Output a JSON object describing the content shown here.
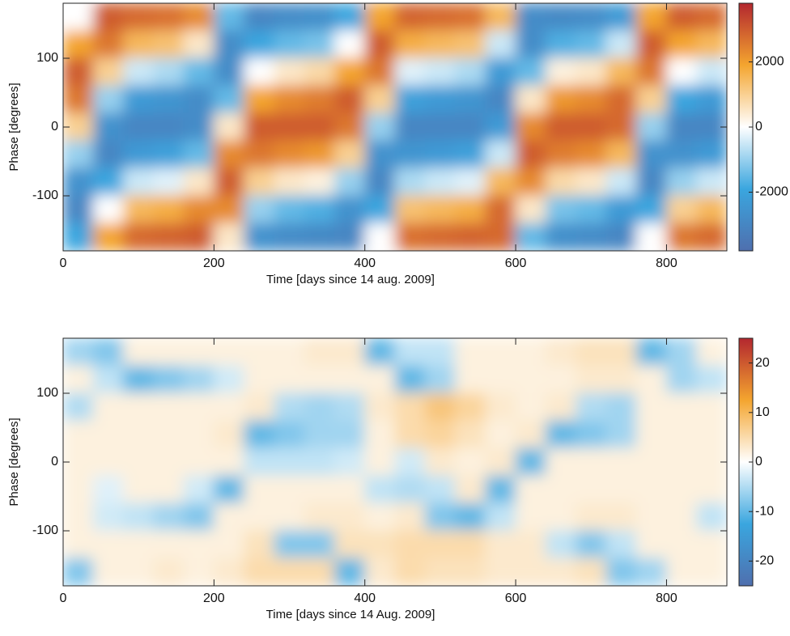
{
  "chart_data": [
    {
      "type": "heatmap",
      "x_label": "Time [days since 14 aug. 2009]",
      "y_label": "Phase [degrees]",
      "xlim": [
        0,
        880
      ],
      "ylim": [
        -180,
        180
      ],
      "xticks": [
        0,
        200,
        400,
        600,
        800
      ],
      "yticks": [
        -100,
        0,
        100
      ],
      "clim": [
        -3800,
        3800
      ],
      "cticks": [
        -2000,
        0,
        2000
      ],
      "colorscale": [
        "#4f6fae",
        "#3aa6df",
        "#ffffff",
        "#f4a52f",
        "#b3272f"
      ],
      "x": [
        20,
        60,
        100,
        140,
        180,
        220,
        260,
        300,
        340,
        380,
        420,
        460,
        500,
        540,
        580,
        620,
        660,
        700,
        740,
        780,
        820,
        860
      ],
      "y": [
        160,
        120,
        80,
        40,
        0,
        -40,
        -80,
        -120,
        -160
      ],
      "z": [
        [
          0,
          1900,
          3000,
          2600,
          1000,
          -1000,
          -2600,
          -3000,
          -1900
        ],
        [
          3000,
          2600,
          1000,
          -1000,
          -2600,
          -3000,
          -1900,
          0,
          1900
        ],
        [
          2800,
          1500,
          -500,
          -2300,
          -3000,
          -2300,
          -500,
          1500,
          2800
        ],
        [
          2700,
          1300,
          -800,
          -2500,
          -3000,
          -2100,
          -300,
          1700,
          2900
        ],
        [
          2300,
          500,
          -1500,
          -2800,
          -2800,
          -1500,
          500,
          2300,
          3000
        ],
        [
          -1500,
          -2800,
          -2800,
          -1500,
          500,
          2300,
          3000,
          2300,
          500
        ],
        [
          -3000,
          -1900,
          0,
          1900,
          3000,
          2600,
          1000,
          -1000,
          -2600
        ],
        [
          -2800,
          -1500,
          500,
          2300,
          3000,
          2300,
          500,
          -1500,
          -2800
        ],
        [
          -2700,
          -1300,
          800,
          2500,
          3000,
          2100,
          300,
          -1700,
          -2900
        ],
        [
          -1900,
          0,
          1900,
          3000,
          2600,
          1000,
          -1000,
          -2600,
          -3000
        ],
        [
          1900,
          3000,
          2600,
          1000,
          -1000,
          -2600,
          -3000,
          -1900,
          0
        ],
        [
          2900,
          1700,
          -300,
          -2100,
          -3000,
          -2500,
          -800,
          1300,
          2700
        ],
        [
          2800,
          1500,
          -500,
          -2300,
          -3000,
          -2300,
          -500,
          1500,
          2800
        ],
        [
          2700,
          1300,
          -800,
          -2500,
          -3000,
          -2100,
          -300,
          1700,
          2900
        ],
        [
          1500,
          -500,
          -2300,
          -3000,
          -2300,
          -500,
          1500,
          2800,
          2800
        ],
        [
          -2800,
          -2800,
          -1500,
          500,
          2300,
          3000,
          2300,
          500,
          -1500
        ],
        [
          -2900,
          -1700,
          300,
          2100,
          3000,
          2500,
          800,
          -1300,
          -2700
        ],
        [
          -2800,
          -1500,
          500,
          2300,
          3000,
          2300,
          500,
          -1500,
          -2800
        ],
        [
          -2300,
          -500,
          1500,
          2800,
          2800,
          1500,
          -500,
          -2300,
          -3000
        ],
        [
          1900,
          3000,
          2600,
          1000,
          -1000,
          -2600,
          -3000,
          -1900,
          0
        ],
        [
          3000,
          1900,
          0,
          -1900,
          -3000,
          -2600,
          -1000,
          1000,
          2600
        ],
        [
          2800,
          1500,
          -500,
          -2300,
          -3000,
          -2300,
          -500,
          1500,
          2800
        ]
      ]
    },
    {
      "type": "heatmap",
      "x_label": "Time [days since 14 Aug. 2009]",
      "y_label": "Phase [degrees]",
      "xlim": [
        0,
        880
      ],
      "ylim": [
        -180,
        180
      ],
      "xticks": [
        0,
        200,
        400,
        600,
        800
      ],
      "yticks": [
        -100,
        0,
        100
      ],
      "clim": [
        -25,
        25
      ],
      "cticks": [
        -20,
        -10,
        0,
        10,
        20
      ],
      "colorscale": [
        "#4f6fae",
        "#3aa6df",
        "#ffffff",
        "#f4a52f",
        "#b3272f"
      ],
      "x": [
        20,
        60,
        100,
        140,
        180,
        220,
        260,
        300,
        340,
        380,
        420,
        460,
        500,
        540,
        580,
        620,
        660,
        700,
        740,
        780,
        820,
        860
      ],
      "y": [
        160,
        120,
        80,
        40,
        0,
        -40,
        -80,
        -120,
        -160
      ],
      "z": [
        [
          -6,
          2,
          -5,
          2,
          2,
          2,
          2,
          2,
          -8
        ],
        [
          -8,
          -4,
          2,
          2,
          2,
          -2,
          -3,
          2,
          2
        ],
        [
          2,
          -10,
          2,
          2,
          2,
          2,
          -4,
          2,
          2
        ],
        [
          2,
          -8,
          2,
          2,
          2,
          2,
          -6,
          2,
          3
        ],
        [
          2,
          -6,
          2,
          2,
          2,
          -3,
          -8,
          2,
          2
        ],
        [
          2,
          -3,
          2,
          3,
          2,
          -10,
          2,
          2,
          3
        ],
        [
          2,
          2,
          3,
          -10,
          -4,
          2,
          2,
          4,
          5
        ],
        [
          2,
          2,
          -5,
          -8,
          -4,
          2,
          2,
          -8,
          5
        ],
        [
          3,
          2,
          -6,
          -6,
          -4,
          2,
          3,
          -8,
          5
        ],
        [
          3,
          2,
          -5,
          -6,
          -3,
          2,
          3,
          4,
          -10
        ],
        [
          -10,
          2,
          3,
          2,
          2,
          -4,
          2,
          4,
          3
        ],
        [
          -4,
          -10,
          5,
          5,
          -3,
          -5,
          3,
          5,
          5
        ],
        [
          -4,
          -6,
          8,
          6,
          3,
          -4,
          -8,
          5,
          4
        ],
        [
          2,
          2,
          6,
          4,
          2,
          3,
          -10,
          5,
          4
        ],
        [
          2,
          2,
          3,
          2,
          3,
          -10,
          -4,
          3,
          3
        ],
        [
          2,
          2,
          2,
          3,
          -10,
          2,
          2,
          3,
          3
        ],
        [
          3,
          2,
          3,
          -10,
          2,
          2,
          2,
          -4,
          3
        ],
        [
          4,
          3,
          -5,
          -8,
          2,
          2,
          3,
          -8,
          4
        ],
        [
          4,
          3,
          -6,
          -6,
          2,
          2,
          3,
          -4,
          -8
        ],
        [
          -10,
          2,
          2,
          2,
          2,
          2,
          2,
          2,
          -6
        ],
        [
          -6,
          -6,
          2,
          2,
          2,
          2,
          2,
          2,
          2
        ],
        [
          2,
          -4,
          2,
          2,
          2,
          2,
          -4,
          2,
          2
        ]
      ]
    }
  ]
}
